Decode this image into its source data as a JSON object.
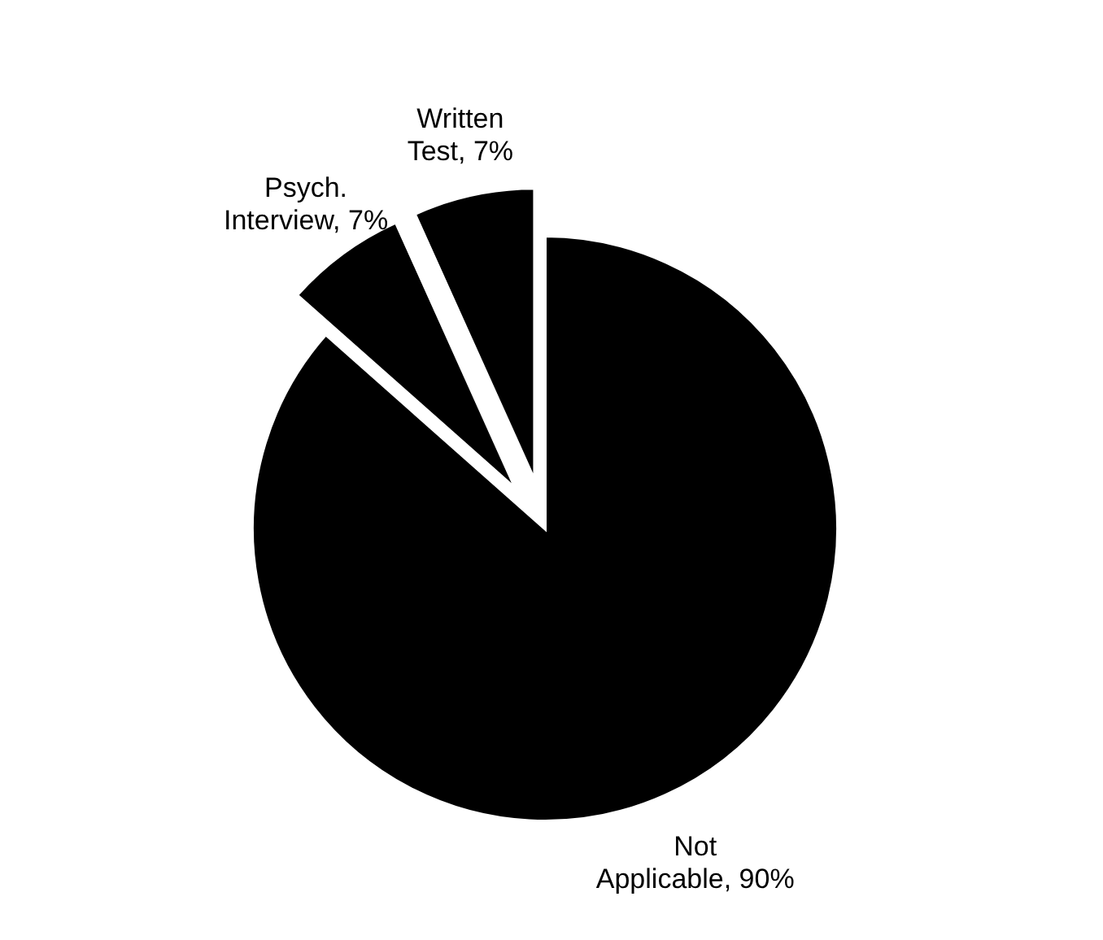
{
  "chart_data": {
    "type": "pie",
    "categories": [
      "Not Applicable",
      "Psych. Interview",
      "Written Test"
    ],
    "values": [
      90,
      7,
      7
    ],
    "colors": [
      "#000000",
      "#000000",
      "#000000"
    ],
    "value_labels": [
      "90%",
      "7%",
      "7%"
    ]
  }
}
